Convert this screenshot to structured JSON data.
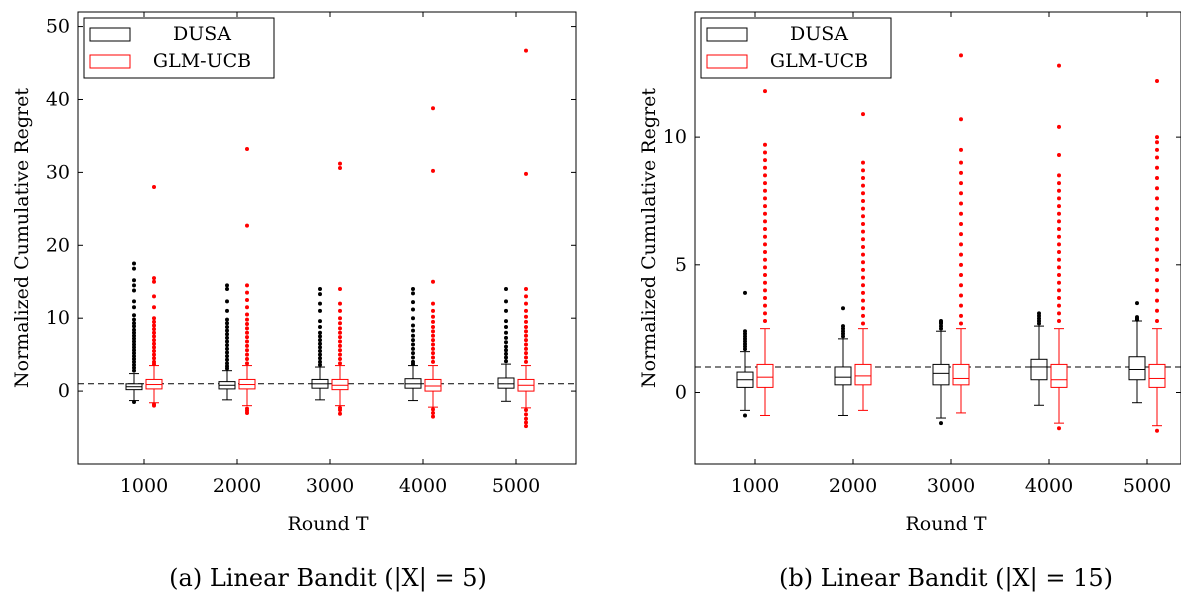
{
  "chart_data": [
    {
      "type": "box",
      "panel": "a",
      "caption": "(a) Linear Bandit (|X| = 5)",
      "xlabel": "Round T",
      "ylabel": "Normalized Cumulative Regret",
      "categories": [
        "1000",
        "2000",
        "3000",
        "4000",
        "5000"
      ],
      "yticks": [
        "0",
        "10",
        "20",
        "30",
        "40",
        "50"
      ],
      "ylim": [
        -10,
        52
      ],
      "reference_line": 1,
      "legend_position": "top-left",
      "series": [
        {
          "name": "DUSA",
          "color": "#000000",
          "boxes": [
            {
              "min": -1.3,
              "q1": 0.2,
              "median": 0.6,
              "q3": 1.0,
              "max": 2.4
            },
            {
              "min": -1.2,
              "q1": 0.3,
              "median": 0.8,
              "q3": 1.3,
              "max": 2.8
            },
            {
              "min": -1.2,
              "q1": 0.4,
              "median": 1.0,
              "q3": 1.6,
              "max": 3.3
            },
            {
              "min": -1.3,
              "q1": 0.4,
              "median": 1.0,
              "q3": 1.7,
              "max": 3.5
            },
            {
              "min": -1.4,
              "q1": 0.4,
              "median": 1.0,
              "q3": 1.8,
              "max": 3.7
            }
          ],
          "outliers": [
            [
              17.5,
              16.8,
              15.2,
              14.5,
              13.8,
              12.3,
              11.5,
              10.4,
              9.8,
              9.3,
              8.9,
              8.4,
              8.0,
              7.6,
              7.2,
              6.8,
              6.4,
              6.0,
              5.6,
              5.2,
              4.8,
              4.4,
              4.0,
              3.6,
              3.2,
              2.8,
              -1.5
            ],
            [
              14.5,
              14.0,
              12.3,
              11.0,
              9.8,
              9.3,
              8.8,
              8.3,
              7.8,
              7.3,
              6.8,
              6.3,
              5.8,
              5.3,
              4.8,
              4.3,
              3.8,
              3.4,
              3.1
            ],
            [
              14.0,
              13.3,
              12.0,
              11.0,
              9.6,
              8.8,
              8.0,
              7.5,
              7.0,
              6.5,
              6.0,
              5.5,
              5.0,
              4.5,
              4.0,
              3.6
            ],
            [
              14.0,
              13.4,
              12.2,
              11.2,
              10.0,
              9.0,
              8.3,
              7.6,
              7.0,
              6.4,
              5.8,
              5.2,
              4.6,
              4.0,
              3.7
            ],
            [
              14.0,
              12.3,
              11.0,
              9.6,
              8.8,
              8.0,
              7.3,
              6.7,
              6.1,
              5.6,
              5.1,
              4.6,
              4.1
            ]
          ]
        },
        {
          "name": "GLM-UCB",
          "color": "#ff0000",
          "boxes": [
            {
              "min": -1.6,
              "q1": 0.3,
              "median": 0.9,
              "q3": 1.6,
              "max": 3.5
            },
            {
              "min": -2.0,
              "q1": 0.3,
              "median": 0.9,
              "q3": 1.6,
              "max": 3.5
            },
            {
              "min": -2.0,
              "q1": 0.2,
              "median": 0.8,
              "q3": 1.6,
              "max": 3.5
            },
            {
              "min": -2.2,
              "q1": 0.0,
              "median": 0.7,
              "q3": 1.6,
              "max": 3.5
            },
            {
              "min": -2.3,
              "q1": 0.0,
              "median": 0.8,
              "q3": 1.6,
              "max": 3.5
            }
          ],
          "outliers": [
            [
              28.0,
              15.5,
              15.0,
              13.0,
              11.5,
              10.0,
              9.5,
              9.0,
              8.5,
              8.0,
              7.5,
              7.0,
              6.5,
              6.0,
              5.5,
              5.0,
              4.5,
              4.0,
              3.7,
              -1.8,
              -2.0
            ],
            [
              33.2,
              22.7,
              14.5,
              13.5,
              12.5,
              11.5,
              10.5,
              9.8,
              9.2,
              8.6,
              8.0,
              7.4,
              6.8,
              6.2,
              5.6,
              5.0,
              4.4,
              3.8,
              -2.4,
              -2.7,
              -3.0
            ],
            [
              31.2,
              30.6,
              14.0,
              12.0,
              11.0,
              10.0,
              9.3,
              8.6,
              8.0,
              7.4,
              6.8,
              6.2,
              5.6,
              5.0,
              4.4,
              3.8,
              -2.3,
              -2.6,
              -3.1
            ],
            [
              38.8,
              30.2,
              15.0,
              12.0,
              11.0,
              10.2,
              9.5,
              8.8,
              8.2,
              7.6,
              7.0,
              6.4,
              5.8,
              5.2,
              4.6,
              4.0,
              -2.5,
              -3.0,
              -3.5
            ],
            [
              46.7,
              29.8,
              14.0,
              13.0,
              12.0,
              11.0,
              10.2,
              9.5,
              8.8,
              8.2,
              7.6,
              7.0,
              6.4,
              5.8,
              5.2,
              4.6,
              4.0,
              -2.6,
              -3.2,
              -3.8,
              -4.3,
              -4.8
            ]
          ]
        }
      ]
    },
    {
      "type": "box",
      "panel": "b",
      "caption": "(b) Linear Bandit (|X| = 15)",
      "xlabel": "Round T",
      "ylabel": "Normalized Cumulative Regret",
      "categories": [
        "1000",
        "2000",
        "3000",
        "4000",
        "5000"
      ],
      "yticks": [
        "0",
        "5",
        "10"
      ],
      "ylim": [
        -2.8,
        14.9
      ],
      "reference_line": 1,
      "legend_position": "top-left",
      "series": [
        {
          "name": "DUSA",
          "color": "#000000",
          "boxes": [
            {
              "min": -0.7,
              "q1": 0.2,
              "median": 0.5,
              "q3": 0.8,
              "max": 1.6
            },
            {
              "min": -0.9,
              "q1": 0.3,
              "median": 0.6,
              "q3": 1.0,
              "max": 2.1
            },
            {
              "min": -1.0,
              "q1": 0.3,
              "median": 0.75,
              "q3": 1.1,
              "max": 2.4
            },
            {
              "min": -0.5,
              "q1": 0.5,
              "median": 1.0,
              "q3": 1.3,
              "max": 2.6
            },
            {
              "min": -0.4,
              "q1": 0.5,
              "median": 0.9,
              "q3": 1.4,
              "max": 2.8
            }
          ],
          "outliers": [
            [
              3.9,
              2.4,
              2.3,
              2.2,
              2.1,
              2.0,
              1.9,
              1.8,
              1.7,
              -0.9
            ],
            [
              3.3,
              2.6,
              2.5,
              2.4,
              2.3,
              2.2
            ],
            [
              2.8,
              2.75,
              2.7,
              2.6,
              2.5,
              -1.2
            ],
            [
              3.1,
              3.0,
              2.9,
              2.8,
              2.7
            ],
            [
              3.5,
              2.95,
              2.9,
              2.85
            ]
          ]
        },
        {
          "name": "GLM-UCB",
          "color": "#ff0000",
          "boxes": [
            {
              "min": -0.9,
              "q1": 0.2,
              "median": 0.6,
              "q3": 1.1,
              "max": 2.5
            },
            {
              "min": -0.7,
              "q1": 0.3,
              "median": 0.65,
              "q3": 1.1,
              "max": 2.5
            },
            {
              "min": -0.8,
              "q1": 0.3,
              "median": 0.55,
              "q3": 1.1,
              "max": 2.5
            },
            {
              "min": -1.2,
              "q1": 0.2,
              "median": 0.5,
              "q3": 1.1,
              "max": 2.5
            },
            {
              "min": -1.3,
              "q1": 0.2,
              "median": 0.55,
              "q3": 1.1,
              "max": 2.5
            }
          ],
          "outliers": [
            [
              11.8,
              9.7,
              9.4,
              9.1,
              8.8,
              8.5,
              8.2,
              7.9,
              7.6,
              7.3,
              7.0,
              6.7,
              6.4,
              6.1,
              5.8,
              5.5,
              5.2,
              4.9,
              4.6,
              4.3,
              4.0,
              3.7,
              3.4,
              3.1,
              2.8
            ],
            [
              10.9,
              9.0,
              8.7,
              8.4,
              8.1,
              7.8,
              7.5,
              7.2,
              6.9,
              6.6,
              6.3,
              6.0,
              5.7,
              5.4,
              5.1,
              4.8,
              4.5,
              4.2,
              3.9,
              3.6,
              3.3,
              3.0,
              2.7
            ],
            [
              13.2,
              10.7,
              9.5,
              9.0,
              8.6,
              8.2,
              7.8,
              7.4,
              7.0,
              6.6,
              6.2,
              5.8,
              5.4,
              5.0,
              4.6,
              4.2,
              3.8,
              3.4,
              3.0,
              2.7
            ],
            [
              12.8,
              10.4,
              9.3,
              8.5,
              8.2,
              7.9,
              7.6,
              7.3,
              7.0,
              6.7,
              6.4,
              6.1,
              5.8,
              5.5,
              5.2,
              4.9,
              4.6,
              4.3,
              4.0,
              3.7,
              3.4,
              3.1,
              2.8,
              -1.4
            ],
            [
              12.2,
              10.0,
              9.8,
              9.5,
              9.2,
              8.8,
              8.4,
              8.0,
              7.6,
              7.2,
              6.8,
              6.4,
              6.0,
              5.6,
              5.2,
              4.8,
              4.4,
              4.0,
              3.6,
              3.2,
              2.8,
              -1.5
            ]
          ]
        }
      ]
    }
  ]
}
